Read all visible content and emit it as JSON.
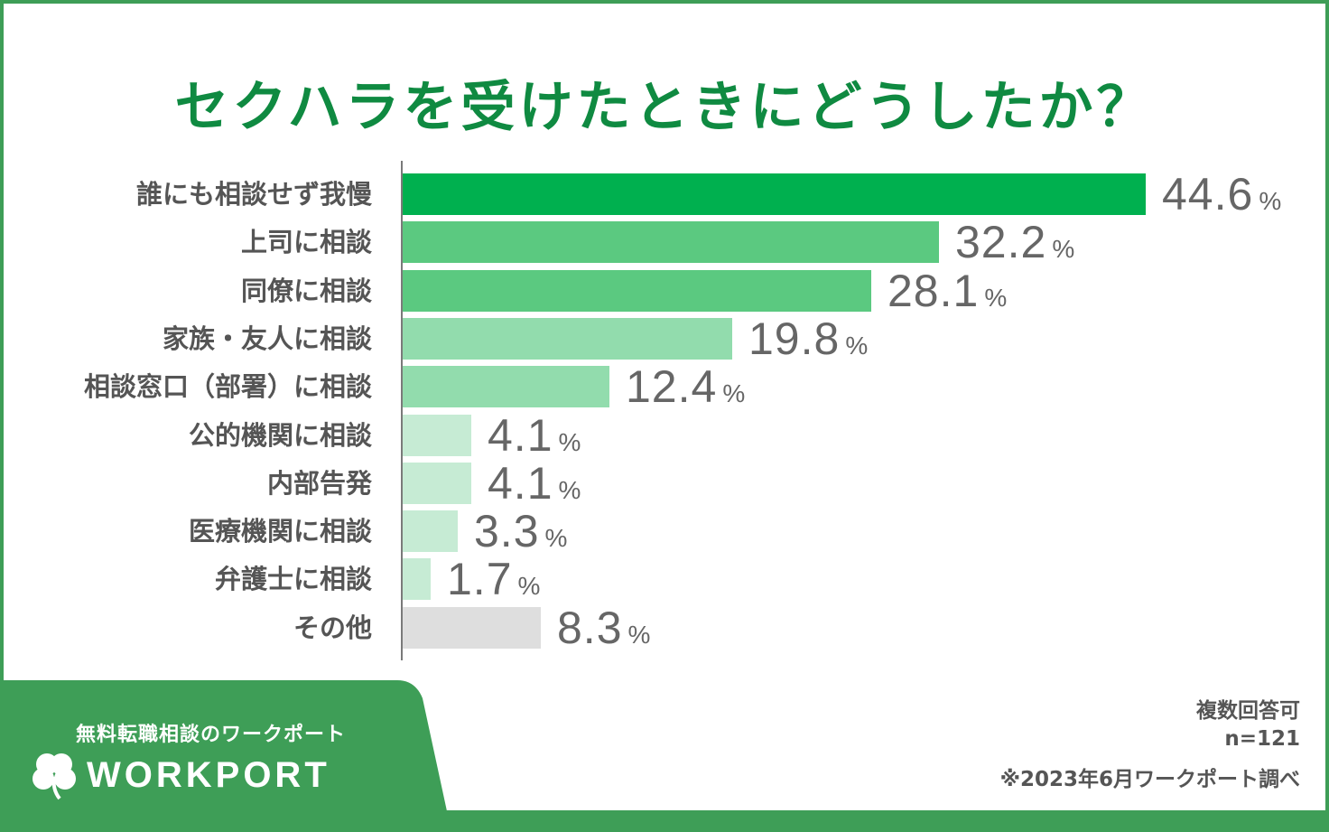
{
  "chart_data": {
    "type": "bar",
    "orientation": "horizontal",
    "title": "セクハラを受けたときにどうしたか？",
    "categories": [
      "誰にも相談せず我慢",
      "上司に相談",
      "同僚に相談",
      "家族・友人に相談",
      "相談窓口（部署）に相談",
      "公的機関に相談",
      "内部告発",
      "医療機関に相談",
      "弁護士に相談",
      "その他"
    ],
    "values": [
      44.6,
      32.2,
      28.1,
      19.8,
      12.4,
      4.1,
      4.1,
      3.3,
      1.7,
      8.3
    ],
    "value_labels": [
      "44.6",
      "32.2",
      "28.1",
      "19.8",
      "12.4",
      "4.1",
      "4.1",
      "3.3",
      "1.7",
      "8.3"
    ],
    "unit": "%",
    "xlim": [
      0,
      55
    ],
    "grid": false,
    "legend": "none",
    "bar_colors": [
      "#00b04f",
      "#5bc980",
      "#5bc980",
      "#92dcad",
      "#92dcad",
      "#c6ebd4",
      "#c6ebd4",
      "#c6ebd4",
      "#c6ebd4",
      "#dedede"
    ]
  },
  "notes": {
    "multiple": "複数回答可",
    "n": "n=121",
    "source": "※2023年6月ワークポート調べ"
  },
  "brand": {
    "tagline": "無料転職相談のワークポート",
    "name": "WORKPORT",
    "logo_icon": "clover-icon"
  },
  "colors": {
    "frame": "#3e9e57",
    "title": "#0f8a41",
    "label_text": "#555555",
    "value_text": "#666666"
  }
}
